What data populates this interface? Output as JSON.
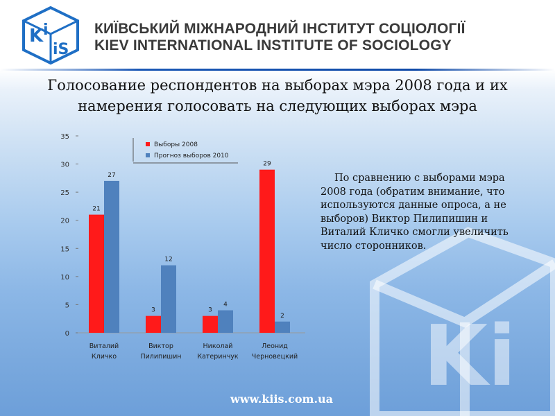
{
  "header": {
    "logo_text": "KiiS",
    "org_name_ua": "КИЇВСЬКИЙ МІЖНАРОДНИЙ ІНСТИТУТ СОЦІОЛОГІЇ",
    "org_name_en": "KIEV INTERNATIONAL  INSTITUTE OF SOCIOLOGY"
  },
  "slide": {
    "title_line1": "Голосование респондентов на выборах мэра 2008 года и их",
    "title_line2": "намерения голосовать на следующих выборах мэра",
    "body": "По сравнению с выборами мэра 2008 года (обратим внимание, что используются данные опроса, а не выборов) Виктор Пилипишин и Виталий Кличко смогли увеличить число сторонников.",
    "background_logo": "KiiS"
  },
  "footer": {
    "url": "www.kiis.com.ua"
  },
  "colors": {
    "series_2008": "#ff1a1a",
    "series_2010": "#4f81bd",
    "brand_blue": "#1f6fc5"
  },
  "chart_data": {
    "type": "bar",
    "categories": [
      [
        "Виталий",
        "Кличко"
      ],
      [
        "Виктор",
        "Пилипишин"
      ],
      [
        "Николай",
        "Катеринчук"
      ],
      [
        "Леонид",
        "Черновецкий"
      ]
    ],
    "series": [
      {
        "name": "Выборы 2008",
        "values": [
          21,
          3,
          3,
          29
        ]
      },
      {
        "name": "Прогноз выборов 2010",
        "values": [
          27,
          12,
          4,
          2
        ]
      }
    ],
    "ylim": [
      0,
      35
    ],
    "yticks": [
      0,
      5,
      10,
      15,
      20,
      25,
      30,
      35
    ],
    "legend": "top",
    "grid": false
  }
}
